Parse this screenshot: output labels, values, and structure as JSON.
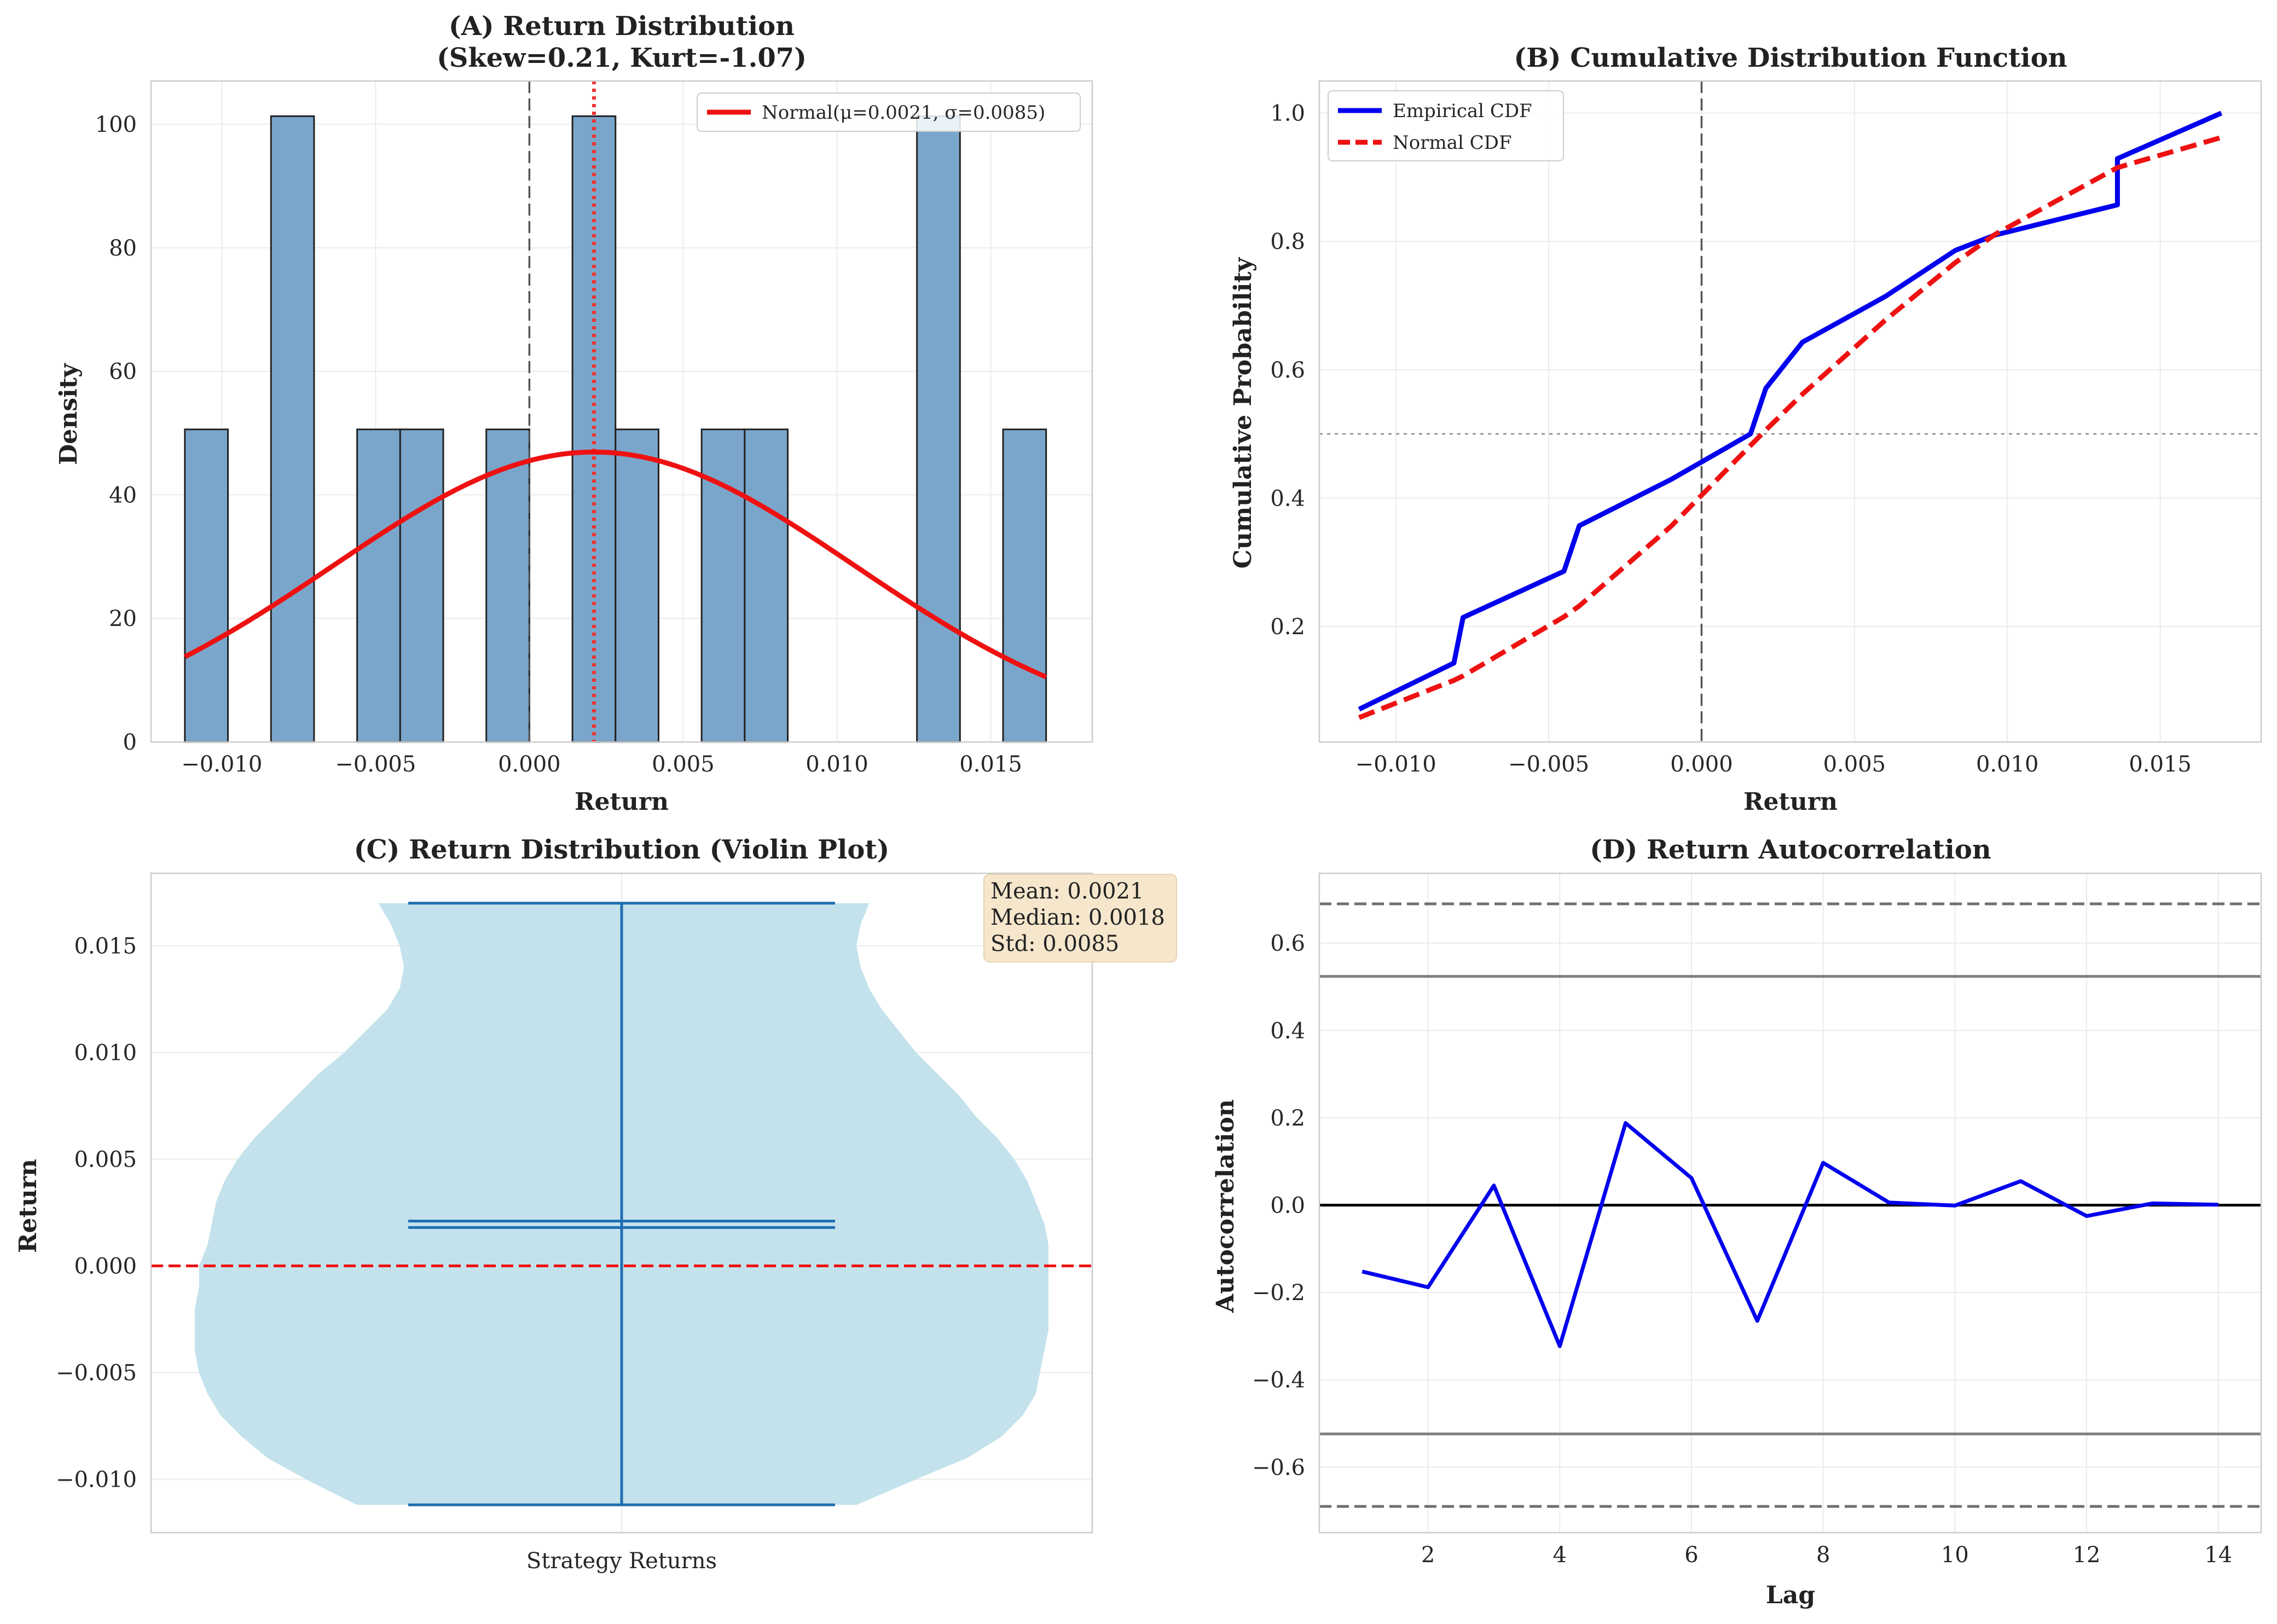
{
  "chart_data": [
    {
      "type": "bar",
      "title": "(A) Return Distribution",
      "subtitle": "(Skew=0.21, Kurt=-1.07)",
      "xlabel": "Return",
      "ylabel": "Density",
      "xlim": [
        -0.0123,
        0.0183
      ],
      "ylim": [
        0,
        107
      ],
      "xticks": [
        -0.01,
        -0.005,
        0.0,
        0.005,
        0.01,
        0.015
      ],
      "xtick_labels": [
        "−0.010",
        "−0.005",
        "0.000",
        "0.005",
        "0.010",
        "0.015"
      ],
      "yticks": [
        0,
        20,
        40,
        60,
        80,
        100
      ],
      "ytick_labels": [
        "0",
        "20",
        "40",
        "60",
        "80",
        "100"
      ],
      "bin_width": 0.0014,
      "bins_left": [
        -0.0112,
        -0.0084,
        -0.0056,
        -0.0042,
        -0.0014,
        0.0014,
        0.0028,
        0.0056,
        0.007,
        0.0126,
        0.0154
      ],
      "density": [
        50.6,
        101.3,
        50.6,
        50.6,
        50.6,
        101.3,
        50.6,
        50.6,
        50.6,
        101.3,
        50.6
      ],
      "normal_fit": {
        "name": "Normal(μ=0.0021, σ=0.0085)",
        "mu": 0.0021,
        "sigma": 0.0085
      },
      "vlines": [
        {
          "x": 0.0,
          "style": "dashed",
          "color": "#555555"
        },
        {
          "x": 0.0021,
          "style": "dotted",
          "color": "#ee3333"
        }
      ],
      "grid": true,
      "legend": "top-right"
    },
    {
      "type": "line",
      "title": "(B) Cumulative Distribution Function",
      "xlabel": "Return",
      "ylabel": "Cumulative Probability",
      "xlim": [
        -0.0125,
        0.0183
      ],
      "ylim": [
        0.02,
        1.05
      ],
      "xticks": [
        -0.01,
        -0.005,
        0.0,
        0.005,
        0.01,
        0.015
      ],
      "xtick_labels": [
        "−0.010",
        "−0.005",
        "0.000",
        "0.005",
        "0.010",
        "0.015"
      ],
      "yticks": [
        0.2,
        0.4,
        0.6,
        0.8,
        1.0
      ],
      "ytick_labels": [
        "0.2",
        "0.4",
        "0.6",
        "0.8",
        "1.0"
      ],
      "series": [
        {
          "name": "Empirical CDF",
          "color": "#0000ee",
          "style": "solid",
          "x": [
            -0.0112,
            -0.0081,
            -0.0078,
            -0.0045,
            -0.004,
            -0.001,
            0.0016,
            0.0021,
            0.0033,
            0.006,
            0.0083,
            0.0096,
            0.0136,
            0.0136,
            0.017
          ],
          "y": [
            0.071,
            0.143,
            0.214,
            0.286,
            0.357,
            0.429,
            0.5,
            0.571,
            0.643,
            0.714,
            0.786,
            0.81,
            0.857,
            0.929,
            1.0
          ]
        },
        {
          "name": "Normal CDF",
          "color": "#ee1111",
          "style": "dashed",
          "x": [
            -0.0112,
            -0.0081,
            -0.0078,
            -0.0045,
            -0.004,
            -0.001,
            0.0016,
            0.0021,
            0.0033,
            0.006,
            0.0083,
            0.0096,
            0.0136,
            0.017
          ],
          "y": [
            0.058,
            0.116,
            0.123,
            0.215,
            0.232,
            0.356,
            0.482,
            0.506,
            0.562,
            0.677,
            0.767,
            0.811,
            0.915,
            0.962
          ]
        }
      ],
      "vlines": [
        {
          "x": 0.0,
          "style": "dashed",
          "color": "#555555"
        }
      ],
      "hlines": [
        {
          "y": 0.5,
          "style": "dotted",
          "color": "#999999"
        }
      ],
      "grid": true,
      "legend": "top-left"
    },
    {
      "type": "violin",
      "title": "(C) Return Distribution (Violin Plot)",
      "ylabel": "Return",
      "category": "Strategy Returns",
      "ylim": [
        -0.0125,
        0.0184
      ],
      "yticks": [
        -0.01,
        -0.005,
        0.0,
        0.005,
        0.01,
        0.015
      ],
      "ytick_labels": [
        "−0.010",
        "−0.005",
        "0.000",
        "0.005",
        "0.010",
        "0.015"
      ],
      "min": -0.0112,
      "max": 0.017,
      "mean": 0.0021,
      "median": 0.0018,
      "density_profile": {
        "y": [
          -0.0112,
          -0.01,
          -0.009,
          -0.008,
          -0.007,
          -0.006,
          -0.005,
          -0.004,
          -0.003,
          -0.002,
          -0.001,
          0.0,
          0.001,
          0.002,
          0.003,
          0.004,
          0.005,
          0.006,
          0.007,
          0.008,
          0.009,
          0.01,
          0.011,
          0.012,
          0.013,
          0.014,
          0.015,
          0.016,
          0.017
        ],
        "left_half_width": [
          0.62,
          0.74,
          0.83,
          0.89,
          0.94,
          0.97,
          0.99,
          1.0,
          1.0,
          1.0,
          0.99,
          0.99,
          0.97,
          0.96,
          0.95,
          0.93,
          0.9,
          0.86,
          0.81,
          0.76,
          0.71,
          0.65,
          0.6,
          0.55,
          0.52,
          0.51,
          0.52,
          0.54,
          0.57
        ],
        "right_half_width": [
          0.55,
          0.69,
          0.81,
          0.89,
          0.94,
          0.97,
          0.98,
          0.99,
          1.0,
          1.0,
          1.0,
          1.0,
          1.0,
          0.99,
          0.97,
          0.95,
          0.92,
          0.88,
          0.83,
          0.79,
          0.74,
          0.69,
          0.65,
          0.61,
          0.58,
          0.56,
          0.55,
          0.56,
          0.58
        ]
      },
      "hlines": [
        {
          "y": 0.0,
          "style": "dashed",
          "color": "#ee1111"
        }
      ],
      "stats_box": {
        "lines": [
          "Mean: 0.0021",
          "Median: 0.0018",
          "Std: 0.0085"
        ]
      },
      "grid": true
    },
    {
      "type": "line",
      "title": "(D) Return Autocorrelation",
      "xlabel": "Lag",
      "ylabel": "Autocorrelation",
      "xlim": [
        0.35,
        14.65
      ],
      "ylim": [
        -0.75,
        0.76
      ],
      "xticks": [
        2,
        4,
        6,
        8,
        10,
        12,
        14
      ],
      "xtick_labels": [
        "2",
        "4",
        "6",
        "8",
        "10",
        "12",
        "14"
      ],
      "yticks": [
        -0.6,
        -0.4,
        -0.2,
        0.0,
        0.2,
        0.4,
        0.6
      ],
      "ytick_labels": [
        "−0.6",
        "−0.4",
        "−0.2",
        "0.0",
        "0.2",
        "0.4",
        "0.6"
      ],
      "series": [
        {
          "name": "",
          "color": "#0000ee",
          "style": "solid",
          "x": [
            1,
            2,
            3,
            4,
            5,
            6,
            7,
            8,
            9,
            10,
            11,
            12,
            13,
            14
          ],
          "y": [
            -0.152,
            -0.188,
            0.045,
            -0.323,
            0.188,
            0.062,
            -0.265,
            0.097,
            0.006,
            -0.001,
            0.055,
            -0.025,
            0.004,
            0.001
          ]
        }
      ],
      "hlines": [
        {
          "y": 0.0,
          "style": "solid",
          "color": "#000000"
        },
        {
          "y": 0.524,
          "style": "solid",
          "color": "#808080"
        },
        {
          "y": -0.524,
          "style": "solid",
          "color": "#808080"
        },
        {
          "y": 0.69,
          "style": "dashed",
          "color": "#707070"
        },
        {
          "y": -0.69,
          "style": "dashed",
          "color": "#707070"
        }
      ],
      "grid": true
    }
  ],
  "colors": {
    "bar_fill": "#7ba6cb",
    "bar_edge": "#222222",
    "fit_line": "#ee1111",
    "violin_fill": "#c3e2ec",
    "violin_lines": "#1f6fb2",
    "stats_box": "#f5e6cc"
  }
}
